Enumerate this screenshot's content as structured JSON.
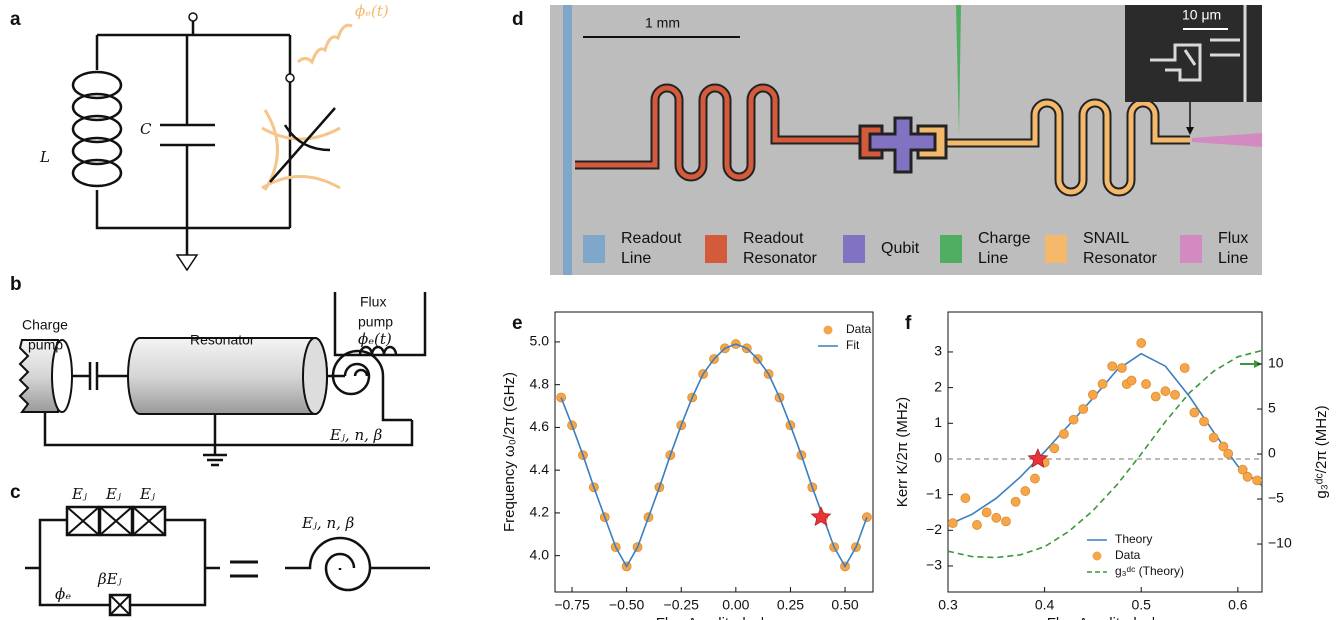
{
  "panels": {
    "a": {
      "label": "a",
      "inductor": "L",
      "capacitor": "C",
      "drive": "ϕₑ(t)"
    },
    "b": {
      "label": "b",
      "charge_pump": [
        "Charge",
        "pump"
      ],
      "resonator": "Resonator",
      "flux_pump": [
        "Flux",
        "pump"
      ],
      "drive": "ϕₑ(t)",
      "params": "Eⱼ, n, β"
    },
    "c": {
      "label": "c",
      "junctions": [
        "Eⱼ",
        "Eⱼ",
        "Eⱼ"
      ],
      "small_junction": "βEⱼ",
      "flux": "ϕₑ",
      "params": "Eⱼ, n, β"
    },
    "d": {
      "label": "d",
      "scale": "1 mm",
      "inset_scale": "10 μm",
      "legend": [
        {
          "lines": [
            "Readout",
            "Line"
          ],
          "color": "#7fa7c9"
        },
        {
          "lines": [
            "Readout",
            "Resonator"
          ],
          "color": "#d45a3c"
        },
        {
          "lines": [
            "Qubit"
          ],
          "color": "#8172c2"
        },
        {
          "lines": [
            "Charge",
            "Line"
          ],
          "color": "#4fae62"
        },
        {
          "lines": [
            "SNAIL",
            "Resonator"
          ],
          "color": "#f5b96b"
        },
        {
          "lines": [
            "Flux",
            "Line"
          ],
          "color": "#d28ac0"
        }
      ]
    }
  },
  "chart_data": [
    {
      "type": "line",
      "panel": "e",
      "xlabel": "Flux Amplitude ϕₑ",
      "ylabel": "Frequency ω₀/2π (GHz)",
      "xlim": [
        -0.828,
        0.628
      ],
      "ylim": [
        3.83,
        5.14
      ],
      "xticks": [
        {
          "value": -0.75,
          "label": "−0.75"
        },
        {
          "value": -0.5,
          "label": "−0.50"
        },
        {
          "value": -0.25,
          "label": "−0.25"
        },
        {
          "value": 0,
          "label": "0.00"
        },
        {
          "value": 0.25,
          "label": "0.25"
        },
        {
          "value": 0.5,
          "label": "0.50"
        }
      ],
      "yticks": [
        {
          "value": 4,
          "label": "4.0"
        },
        4.2,
        4.4,
        4.6,
        4.8,
        {
          "value": 5,
          "label": "5.0"
        }
      ],
      "legend": "upper right",
      "series": [
        {
          "name": "Data",
          "color": "#f5a54a",
          "style": "markers",
          "x": [
            -0.8,
            -0.75,
            -0.7,
            -0.65,
            -0.6,
            -0.55,
            -0.5,
            -0.45,
            -0.4,
            -0.35,
            -0.3,
            -0.25,
            -0.2,
            -0.15,
            -0.1,
            -0.05,
            0,
            0.05,
            0.1,
            0.15,
            0.2,
            0.25,
            0.3,
            0.35,
            0.4,
            0.45,
            0.5,
            0.55,
            0.6
          ],
          "values": [
            4.74,
            4.61,
            4.47,
            4.32,
            4.18,
            4.04,
            3.95,
            4.04,
            4.18,
            4.32,
            4.47,
            4.61,
            4.74,
            4.85,
            4.92,
            4.97,
            4.99,
            4.97,
            4.92,
            4.85,
            4.74,
            4.61,
            4.47,
            4.32,
            4.18,
            4.04,
            3.95,
            4.04,
            4.18
          ]
        },
        {
          "name": "Fit",
          "color": "#3a7fbf",
          "style": "solid",
          "x": [
            -0.8,
            -0.75,
            -0.7,
            -0.65,
            -0.6,
            -0.55,
            -0.5,
            -0.45,
            -0.4,
            -0.35,
            -0.3,
            -0.25,
            -0.2,
            -0.15,
            -0.1,
            -0.05,
            0,
            0.05,
            0.1,
            0.15,
            0.2,
            0.25,
            0.3,
            0.35,
            0.4,
            0.45,
            0.5,
            0.55,
            0.6
          ],
          "values": [
            4.74,
            4.61,
            4.47,
            4.32,
            4.18,
            4.04,
            3.95,
            4.04,
            4.18,
            4.32,
            4.47,
            4.61,
            4.74,
            4.85,
            4.92,
            4.97,
            4.99,
            4.97,
            4.92,
            4.85,
            4.74,
            4.61,
            4.47,
            4.32,
            4.18,
            4.04,
            3.95,
            4.04,
            4.18
          ]
        }
      ],
      "highlight": {
        "x": 0.39,
        "y": 4.18,
        "color": "#e8333a"
      }
    },
    {
      "type": "line",
      "panel": "f",
      "xlabel": "Flux Amplitude ϕₑ",
      "ylabel": "Kerr K/2π (MHz)",
      "y2label": "g₃ᵈᶜ/2π (MHz)",
      "xlim": [
        0.3,
        0.625
      ],
      "ylim": [
        -3.73,
        4.12
      ],
      "y2lim": [
        -15.33,
        15.78
      ],
      "xticks": [
        0.3,
        0.4,
        0.5,
        0.6
      ],
      "yticks": [
        {
          "value": -3,
          "label": "−3"
        },
        {
          "value": -2,
          "label": "−2"
        },
        {
          "value": -1,
          "label": "−1"
        },
        0,
        1,
        2,
        3
      ],
      "y2ticks": [
        {
          "value": -10,
          "label": "−10"
        },
        {
          "value": -5,
          "label": "−5"
        },
        0,
        5,
        10
      ],
      "hline": 0,
      "legend": "lower right",
      "series": [
        {
          "name": "Theory",
          "color": "#3a7fbf",
          "style": "solid",
          "x": [
            0.3,
            0.325,
            0.35,
            0.375,
            0.4,
            0.425,
            0.45,
            0.475,
            0.5,
            0.525,
            0.55,
            0.575,
            0.6,
            0.625
          ],
          "values": [
            -1.85,
            -1.55,
            -1.1,
            -0.5,
            0.2,
            0.95,
            1.7,
            2.5,
            2.95,
            2.6,
            1.75,
            0.75,
            -0.2,
            -0.75
          ]
        },
        {
          "name": "Data",
          "color": "#f5a54a",
          "style": "markers",
          "x": [
            0.305,
            0.318,
            0.33,
            0.34,
            0.35,
            0.36,
            0.37,
            0.38,
            0.39,
            0.4,
            0.41,
            0.42,
            0.43,
            0.44,
            0.45,
            0.46,
            0.47,
            0.48,
            0.485,
            0.49,
            0.5,
            0.505,
            0.515,
            0.525,
            0.535,
            0.545,
            0.555,
            0.565,
            0.575,
            0.585,
            0.59,
            0.605,
            0.61,
            0.62
          ],
          "values": [
            -1.8,
            -1.1,
            -1.85,
            -1.5,
            -1.65,
            -1.75,
            -1.2,
            -0.9,
            -0.55,
            -0.1,
            0.3,
            0.7,
            1.1,
            1.4,
            1.8,
            2.1,
            2.6,
            2.55,
            2.1,
            2.2,
            3.25,
            2.1,
            1.75,
            1.9,
            1.8,
            2.55,
            1.3,
            1.05,
            0.6,
            0.35,
            0.15,
            -0.3,
            -0.5,
            -0.6
          ]
        },
        {
          "name": "g₃ᵈᶜ (Theory)",
          "color": "#3a9a3a",
          "style": "dashed",
          "axis": "y2",
          "x": [
            0.3,
            0.325,
            0.35,
            0.375,
            0.4,
            0.425,
            0.45,
            0.475,
            0.5,
            0.525,
            0.55,
            0.575,
            0.6,
            0.625
          ],
          "values": [
            -10.8,
            -11.4,
            -11.5,
            -11.2,
            -10.3,
            -8.6,
            -6.3,
            -3.4,
            0,
            3.6,
            6.8,
            9.2,
            10.8,
            11.5
          ]
        }
      ],
      "highlight": {
        "x": 0.393,
        "y": 0,
        "color": "#e8333a"
      }
    }
  ]
}
